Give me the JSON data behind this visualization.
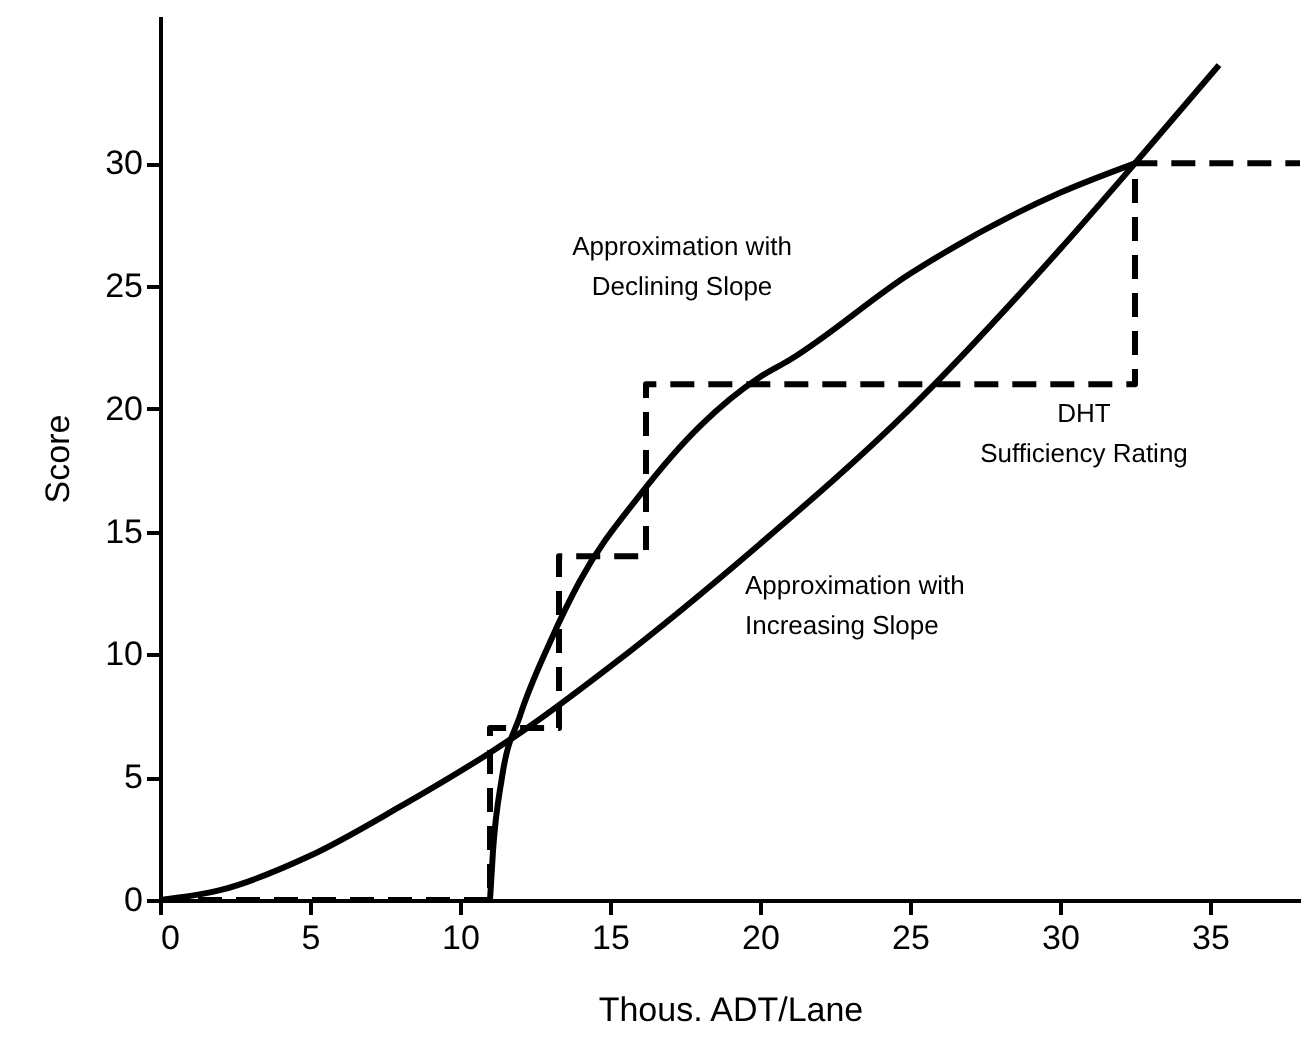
{
  "chart_data": {
    "type": "line",
    "xlabel": "Thous. ADT/Lane",
    "ylabel": "Score",
    "xlim": [
      0,
      38
    ],
    "ylim": [
      0,
      36
    ],
    "xticks": [
      0,
      5,
      10,
      15,
      20,
      25,
      30,
      35
    ],
    "yticks": [
      0,
      5,
      10,
      15,
      20,
      25,
      30
    ],
    "grid": false,
    "legend": false,
    "marker": "none",
    "series": [
      {
        "name": "Approximation with\nDeclining Slope",
        "color": "#000000",
        "line_style": "solid",
        "x": [
          11,
          11.1,
          11.4,
          12,
          13,
          14,
          16,
          18,
          20,
          21,
          25,
          30,
          32.5
        ],
        "values": [
          0,
          2,
          5,
          7.5,
          10.5,
          13,
          16.5,
          19.3,
          21.3,
          22,
          25.5,
          28.8,
          30
        ]
      },
      {
        "name": "Approximation with\nIncreasing Slope",
        "color": "#000000",
        "line_style": "solid",
        "x": [
          0,
          2,
          5,
          8,
          11,
          12,
          15,
          20,
          25,
          30,
          32.5,
          35.3
        ],
        "values": [
          0,
          0.4,
          1.8,
          3.8,
          6,
          6.8,
          9.5,
          14.5,
          20,
          26.5,
          30,
          34
        ]
      },
      {
        "name": "DHT\nSufficiency Rating",
        "type": "step",
        "color": "#000000",
        "line_style": "dashed",
        "x": [
          0,
          11,
          13.3,
          16.2,
          32.5,
          38
        ],
        "values": [
          0,
          7,
          14,
          21,
          30,
          30
        ]
      }
    ]
  }
}
